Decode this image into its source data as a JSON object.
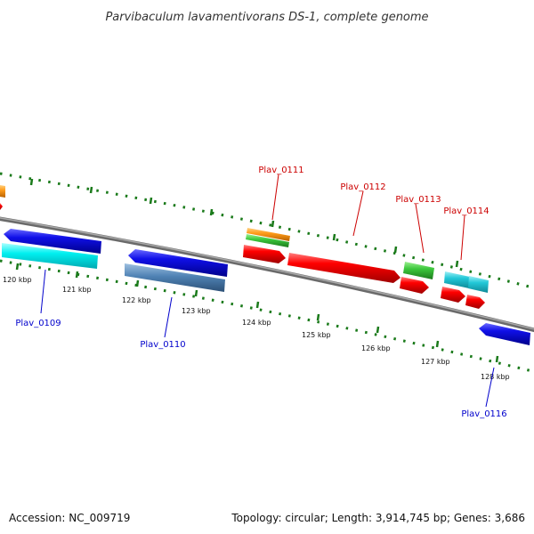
{
  "title": "Parvibaculum lavamentivorans DS-1, complete genome",
  "footer": {
    "accession": "Accession: NC_009719",
    "summary": "Topology: circular; Length: 3,914,745 bp; Genes: 3,686"
  },
  "colors": {
    "backbone": "#808080",
    "tick": "#1a7a1a",
    "forward_label": "#cc0000",
    "reverse_label": "#0000cc"
  },
  "ticks": [
    "120 kbp",
    "121 kbp",
    "122 kbp",
    "123 kbp",
    "124 kbp",
    "125 kbp",
    "126 kbp",
    "127 kbp",
    "128 kbp"
  ],
  "gene_labels": {
    "plav_0109": "Plav_0109",
    "plav_0110": "Plav_0110",
    "plav_0111": "Plav_0111",
    "plav_0112": "Plav_0112",
    "plav_0113": "Plav_0113",
    "plav_0114": "Plav_0114",
    "plav_0116": "Plav_0116"
  }
}
